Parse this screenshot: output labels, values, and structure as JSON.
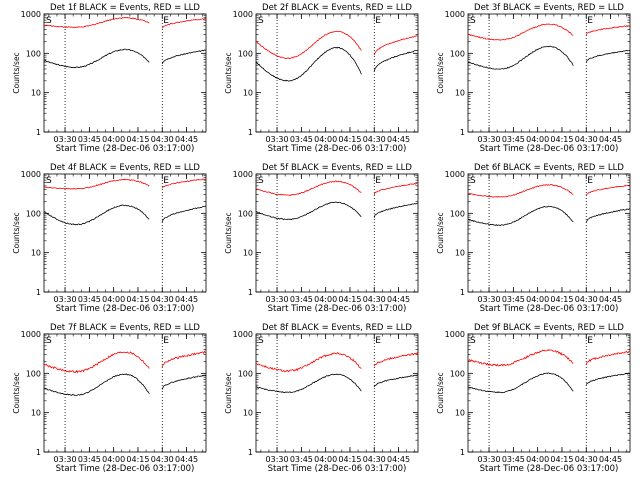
{
  "chart_data": [
    {
      "type": "line",
      "title": "Det 1f BLACK = Events, RED = LLD",
      "xlabel": "Start Time (28-Dec-06 03:17:00)",
      "ylabel": "Counts/sec",
      "yscale": "log",
      "ylim": [
        1,
        1000
      ],
      "xticks": [
        "03:30",
        "03:45",
        "04:00",
        "04:15",
        "04:30",
        "04:45"
      ],
      "yticks": [
        "1",
        "10",
        "100",
        "1000"
      ],
      "dotted_lines_at": [
        "03:30",
        "04:30"
      ],
      "markers": [
        "S",
        "E"
      ],
      "series": [
        {
          "color": "#000000",
          "start": 66,
          "low": 44,
          "peak": 125,
          "gap_start": 60,
          "gap_end": 55,
          "end": 120
        },
        {
          "color": "#ff0000",
          "start": 520,
          "low": 460,
          "peak": 800,
          "gap_start": 600,
          "gap_end": 440,
          "end": 760
        }
      ]
    },
    {
      "type": "line",
      "title": "Det 2f BLACK = Events, RED = LLD",
      "xlabel": "Start Time (28-Dec-06 03:17:00)",
      "ylabel": "Counts/sec",
      "yscale": "log",
      "ylim": [
        1,
        1000
      ],
      "xticks": [
        "03:30",
        "03:45",
        "04:00",
        "04:15",
        "04:30",
        "04:45"
      ],
      "yticks": [
        "1",
        "10",
        "100",
        "1000"
      ],
      "dotted_lines_at": [
        "03:30",
        "04:30"
      ],
      "markers": [
        "S",
        "E"
      ],
      "series": [
        {
          "color": "#000000",
          "start": 60,
          "low": 20,
          "peak": 140,
          "gap_start": 30,
          "gap_end": 35,
          "end": 120
        },
        {
          "color": "#ff0000",
          "start": 200,
          "low": 75,
          "peak": 360,
          "gap_start": 120,
          "gap_end": 90,
          "end": 280
        }
      ]
    },
    {
      "type": "line",
      "title": "Det 3f BLACK = Events, RED = LLD",
      "xlabel": "Start Time (28-Dec-06 03:17:00)",
      "ylabel": "Counts/sec",
      "yscale": "log",
      "ylim": [
        1,
        1000
      ],
      "xticks": [
        "03:30",
        "03:45",
        "04:00",
        "04:15",
        "04:30",
        "04:45"
      ],
      "yticks": [
        "1",
        "10",
        "100",
        "1000"
      ],
      "dotted_lines_at": [
        "03:30",
        "04:30"
      ],
      "markers": [
        "S",
        "E"
      ],
      "series": [
        {
          "color": "#000000",
          "start": 60,
          "low": 40,
          "peak": 150,
          "gap_start": 50,
          "gap_end": 60,
          "end": 120
        },
        {
          "color": "#ff0000",
          "start": 300,
          "low": 220,
          "peak": 550,
          "gap_start": 280,
          "gap_end": 300,
          "end": 500
        }
      ]
    },
    {
      "type": "line",
      "title": "Det 4f BLACK = Events, RED = LLD",
      "xlabel": "Start Time (28-Dec-06 03:17:00)",
      "ylabel": "Counts/sec",
      "yscale": "log",
      "ylim": [
        1,
        1000
      ],
      "xticks": [
        "03:30",
        "03:45",
        "04:00",
        "04:15",
        "04:30",
        "04:45"
      ],
      "yticks": [
        "1",
        "10",
        "100",
        "1000"
      ],
      "dotted_lines_at": [
        "03:30",
        "04:30"
      ],
      "markers": [
        "S",
        "E"
      ],
      "series": [
        {
          "color": "#000000",
          "start": 110,
          "low": 52,
          "peak": 160,
          "gap_start": 70,
          "gap_end": 60,
          "end": 150
        },
        {
          "color": "#ff0000",
          "start": 460,
          "low": 420,
          "peak": 720,
          "gap_start": 500,
          "gap_end": 430,
          "end": 750
        }
      ]
    },
    {
      "type": "line",
      "title": "Det 5f BLACK = Events, RED = LLD",
      "xlabel": "Start Time (28-Dec-06 03:17:00)",
      "ylabel": "Counts/sec",
      "yscale": "log",
      "ylim": [
        1,
        1000
      ],
      "xticks": [
        "03:30",
        "03:45",
        "04:00",
        "04:15",
        "04:30",
        "04:45"
      ],
      "yticks": [
        "1",
        "10",
        "100",
        "1000"
      ],
      "dotted_lines_at": [
        "03:30",
        "04:30"
      ],
      "markers": [
        "S",
        "E"
      ],
      "series": [
        {
          "color": "#000000",
          "start": 110,
          "low": 70,
          "peak": 190,
          "gap_start": 80,
          "gap_end": 80,
          "end": 180
        },
        {
          "color": "#ff0000",
          "start": 420,
          "low": 290,
          "peak": 650,
          "gap_start": 330,
          "gap_end": 300,
          "end": 580
        }
      ]
    },
    {
      "type": "line",
      "title": "Det 6f BLACK = Events, RED = LLD",
      "xlabel": "Start Time (28-Dec-06 03:17:00)",
      "ylabel": "Counts/sec",
      "yscale": "log",
      "ylim": [
        1,
        1000
      ],
      "xticks": [
        "03:30",
        "03:45",
        "04:00",
        "04:15",
        "04:30",
        "04:45"
      ],
      "yticks": [
        "1",
        "10",
        "100",
        "1000"
      ],
      "dotted_lines_at": [
        "03:30",
        "04:30"
      ],
      "markers": [
        "S",
        "E"
      ],
      "series": [
        {
          "color": "#000000",
          "start": 70,
          "low": 50,
          "peak": 150,
          "gap_start": 60,
          "gap_end": 60,
          "end": 130
        },
        {
          "color": "#ff0000",
          "start": 320,
          "low": 260,
          "peak": 530,
          "gap_start": 300,
          "gap_end": 290,
          "end": 520
        }
      ]
    },
    {
      "type": "line",
      "title": "Det 7f BLACK = Events, RED = LLD",
      "xlabel": "Start Time (28-Dec-06 03:17:00)",
      "ylabel": "Counts/sec",
      "yscale": "log",
      "ylim": [
        1,
        1000
      ],
      "xticks": [
        "03:30",
        "03:45",
        "04:00",
        "04:15",
        "04:30",
        "04:45"
      ],
      "yticks": [
        "1",
        "10",
        "100",
        "1000"
      ],
      "dotted_lines_at": [
        "03:30",
        "04:30"
      ],
      "markers": [
        "S",
        "E"
      ],
      "series": [
        {
          "color": "#000000",
          "start": 42,
          "low": 28,
          "peak": 95,
          "gap_start": 30,
          "gap_end": 40,
          "end": 90
        },
        {
          "color": "#ff0000",
          "start": 170,
          "low": 110,
          "peak": 350,
          "gap_start": 130,
          "gap_end": 150,
          "end": 350
        }
      ]
    },
    {
      "type": "line",
      "title": "Det 8f BLACK = Events, RED = LLD",
      "xlabel": "Start Time (28-Dec-06 03:17:00)",
      "ylabel": "Counts/sec",
      "yscale": "log",
      "ylim": [
        1,
        1000
      ],
      "xticks": [
        "03:30",
        "03:45",
        "04:00",
        "04:15",
        "04:30",
        "04:45"
      ],
      "yticks": [
        "1",
        "10",
        "100",
        "1000"
      ],
      "dotted_lines_at": [
        "03:30",
        "04:30"
      ],
      "markers": [
        "S",
        "E"
      ],
      "series": [
        {
          "color": "#000000",
          "start": 45,
          "low": 33,
          "peak": 95,
          "gap_start": 35,
          "gap_end": 45,
          "end": 90
        },
        {
          "color": "#ff0000",
          "start": 180,
          "low": 115,
          "peak": 320,
          "gap_start": 130,
          "gap_end": 150,
          "end": 320
        }
      ]
    },
    {
      "type": "line",
      "title": "Det 9f BLACK = Events, RED = LLD",
      "xlabel": "Start Time (28-Dec-06 03:17:00)",
      "ylabel": "Counts/sec",
      "yscale": "log",
      "ylim": [
        1,
        1000
      ],
      "xticks": [
        "03:30",
        "03:45",
        "04:00",
        "04:15",
        "04:30",
        "04:45"
      ],
      "yticks": [
        "1",
        "10",
        "100",
        "1000"
      ],
      "dotted_lines_at": [
        "03:30",
        "04:30"
      ],
      "markers": [
        "S",
        "E"
      ],
      "series": [
        {
          "color": "#000000",
          "start": 45,
          "low": 33,
          "peak": 100,
          "gap_start": 35,
          "gap_end": 50,
          "end": 100
        },
        {
          "color": "#ff0000",
          "start": 220,
          "low": 160,
          "peak": 380,
          "gap_start": 180,
          "gap_end": 170,
          "end": 360
        }
      ]
    }
  ]
}
